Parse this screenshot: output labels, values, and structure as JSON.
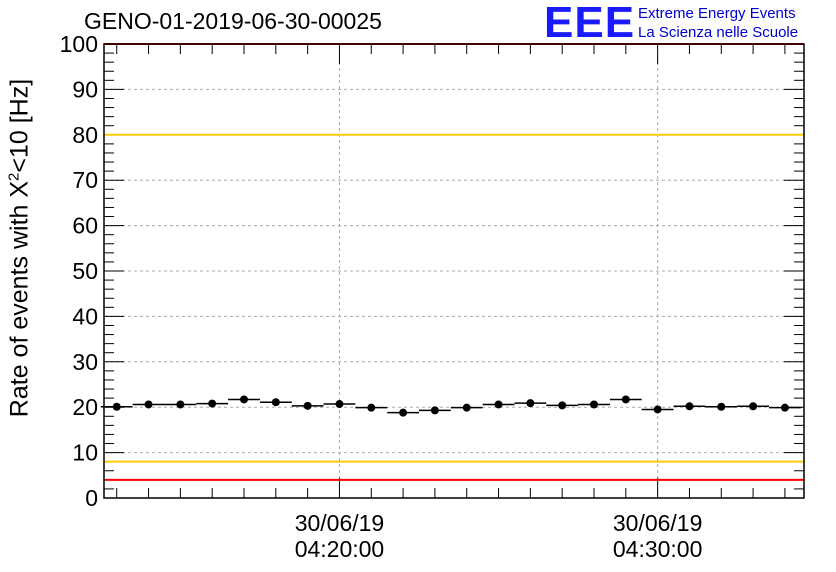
{
  "chart_data": {
    "type": "scatter",
    "title": "GENO-01-2019-06-30-00025",
    "ylabel_prefix": "Rate of events with X",
    "ylabel_sup": "2",
    "ylabel_suffix": "<10 [Hz]",
    "xlabel": "",
    "ylim": [
      0,
      100
    ],
    "y_ticks": [
      "0",
      "10",
      "20",
      "30",
      "40",
      "50",
      "60",
      "70",
      "80",
      "90",
      "100"
    ],
    "x_time_labels": [
      {
        "date": "30/06/19",
        "time": "04:20:00",
        "minute": 20
      },
      {
        "date": "30/06/19",
        "time": "04:30:00",
        "minute": 30
      }
    ],
    "xlim_minutes": [
      12.6,
      34.6
    ],
    "grid": true,
    "series": [
      {
        "x_minutes": [
          13.0,
          14.0,
          15.0,
          16.0,
          17.0,
          18.0,
          19.0,
          20.0,
          21.0,
          22.0,
          23.0,
          24.0,
          25.0,
          26.0,
          27.0,
          28.0,
          29.0,
          30.0,
          31.0,
          32.0,
          33.0,
          34.0
        ],
        "values": [
          20.1,
          20.6,
          20.6,
          20.8,
          21.7,
          21.1,
          20.3,
          20.7,
          19.9,
          18.8,
          19.3,
          19.9,
          20.6,
          20.9,
          20.4,
          20.6,
          21.7,
          19.5,
          20.2,
          20.1,
          20.2,
          19.9
        ]
      }
    ],
    "reference_lines": [
      {
        "value": 100,
        "color": "#ff0000"
      },
      {
        "value": 80,
        "color": "#ffcc00"
      },
      {
        "value": 8,
        "color": "#ffcc00"
      },
      {
        "value": 4,
        "color": "#ff0000"
      }
    ]
  },
  "logo": {
    "mark": "EEE",
    "line1": "Extreme Energy Events",
    "line2": "La Scienza nelle Scuole"
  }
}
